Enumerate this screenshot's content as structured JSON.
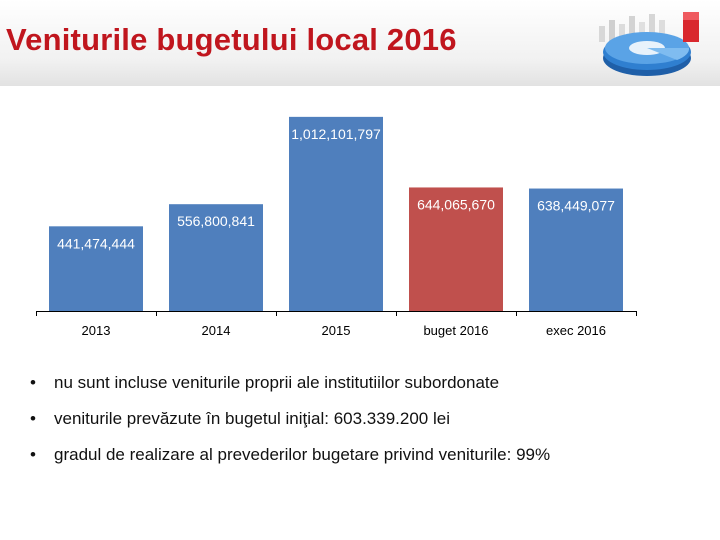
{
  "header": {
    "title": "Veniturile bugetului local 2016"
  },
  "colors": {
    "title": "#c0161e",
    "bar_default": "#4f7fbd",
    "bar_highlight": "#c0504d",
    "label_text": "#ffffff",
    "axis": "#000000"
  },
  "chart_data": {
    "type": "bar",
    "categories": [
      "2013",
      "2014",
      "2015",
      "buget 2016",
      "exec 2016"
    ],
    "values": [
      441474444,
      556800841,
      1012101797,
      644065670,
      638449077
    ],
    "data_labels": [
      "441,474,444",
      "556,800,841",
      "1,012,101,797",
      "644,065,670",
      "638,449,077"
    ],
    "highlight_index": 3,
    "title": "",
    "xlabel": "",
    "ylabel": "",
    "ylim": [
      0,
      1100000000
    ],
    "grid": false,
    "legend": "none"
  },
  "bullets": [
    "nu sunt incluse veniturile proprii ale institutiilor subordonate",
    "veniturile prevăzute în bugetul iniţial:  603.339.200 lei",
    "gradul de realizare al prevederilor bugetare privind veniturile: 99%"
  ],
  "bullet_symbol": "•"
}
